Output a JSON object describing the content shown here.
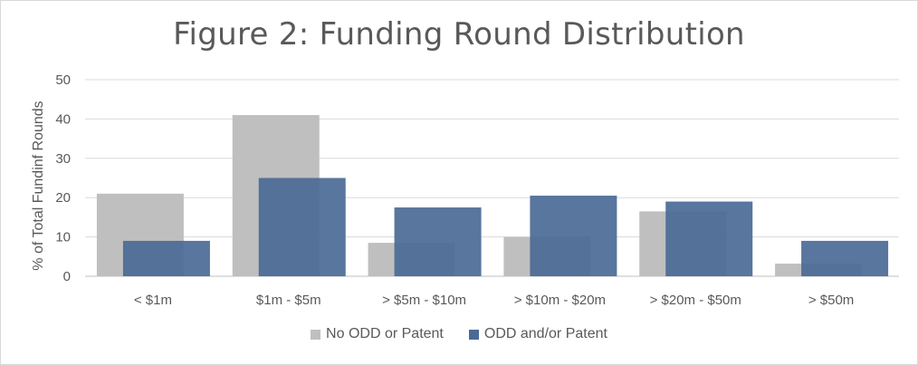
{
  "chart_data": {
    "type": "bar",
    "title": "Figure 2: Funding Round Distribution",
    "xlabel": "",
    "ylabel": "% of Total Fundinf Rounds",
    "ylim": [
      0,
      50
    ],
    "yticks": [
      0,
      10,
      20,
      30,
      40,
      50
    ],
    "categories": [
      "< $1m",
      "$1m - $5m",
      "> $5m - $10m",
      "> $10m - $20m",
      "> $20m - $50m",
      "> $50m"
    ],
    "series": [
      {
        "name": "No ODD or Patent",
        "values": [
          21,
          41,
          8.5,
          10,
          16.5,
          3.2
        ],
        "color": "#bfbfbf"
      },
      {
        "name": "ODD and/or Patent",
        "values": [
          9,
          25,
          17.5,
          20.5,
          19,
          9
        ],
        "color": "#4a6a96"
      }
    ],
    "grid": true,
    "legend_position": "bottom"
  }
}
